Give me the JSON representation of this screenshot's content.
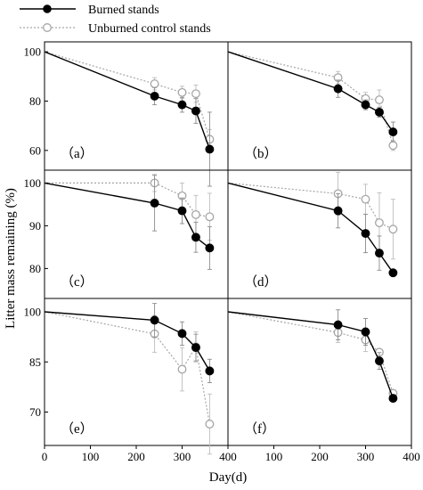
{
  "chart_data": {
    "type": "line",
    "xlabel": "Day(d)",
    "ylabel": "Litter mass remaining (%)",
    "legend": {
      "placement": "top-left",
      "entries": [
        {
          "label": "Burned stands",
          "color": "#000000",
          "marker": "filled-circle",
          "line": "solid"
        },
        {
          "label": "Unburned control stands",
          "color": "#a6a6a6",
          "marker": "open-circle",
          "line": "dotted"
        }
      ]
    },
    "xlim": [
      0,
      400
    ],
    "x_ticks": [
      0,
      100,
      200,
      300,
      400
    ],
    "x_tick_labels_left": [
      "0",
      "100",
      "200",
      "300",
      "400"
    ],
    "x_tick_labels_right": [
      "100",
      "200",
      "300",
      "400"
    ],
    "panels": [
      {
        "tag": "（a）",
        "ylim": [
          52,
          104
        ],
        "y_ticks": [
          60,
          80,
          100
        ],
        "series": [
          {
            "key": "burned",
            "x": [
              0,
              240,
              300,
              330,
              360
            ],
            "y": [
              100,
              82,
              78.5,
              76,
              60.5
            ],
            "err": [
              0,
              3.5,
              3,
              5,
              15
            ]
          },
          {
            "key": "unburned",
            "x": [
              0,
              240,
              300,
              330,
              360
            ],
            "y": [
              100,
              87,
              83.5,
              83,
              64.5
            ],
            "err": [
              0,
              2.5,
              2.5,
              3.5,
              4
            ]
          }
        ]
      },
      {
        "tag": "（b）",
        "ylim": [
          52,
          104
        ],
        "y_ticks": [],
        "series": [
          {
            "key": "burned",
            "x": [
              0,
              240,
              300,
              330,
              360
            ],
            "y": [
              100,
              85,
              78.5,
              75.5,
              67.5
            ],
            "err": [
              0,
              3.5,
              2,
              2,
              4
            ]
          },
          {
            "key": "unburned",
            "x": [
              0,
              240,
              300,
              330,
              360
            ],
            "y": [
              100,
              89.5,
              81,
              80.5,
              62
            ],
            "err": [
              0,
              2.5,
              2.5,
              4,
              2
            ]
          }
        ]
      },
      {
        "tag": "（c）",
        "ylim": [
          73,
          103
        ],
        "y_ticks": [
          80,
          90,
          100
        ],
        "series": [
          {
            "key": "burned",
            "x": [
              0,
              240,
              300,
              330,
              360
            ],
            "y": [
              100,
              95.3,
              93.5,
              87.3,
              84.8
            ],
            "err": [
              0,
              6.5,
              3,
              3.5,
              5
            ]
          },
          {
            "key": "unburned",
            "x": [
              0,
              240,
              300,
              330,
              360
            ],
            "y": [
              100,
              100,
              97,
              92.6,
              92.1
            ],
            "err": [
              0,
              2,
              3,
              4.5,
              5.5
            ]
          }
        ]
      },
      {
        "tag": "（d）",
        "ylim": [
          73,
          103
        ],
        "y_ticks": [],
        "series": [
          {
            "key": "burned",
            "x": [
              0,
              240,
              300,
              330,
              360
            ],
            "y": [
              100,
              93.5,
              88.2,
              83.6,
              79
            ],
            "err": [
              0,
              4,
              4.5,
              4,
              0.5
            ]
          },
          {
            "key": "unburned",
            "x": [
              0,
              240,
              300,
              330,
              360
            ],
            "y": [
              100,
              97.5,
              96.2,
              90.7,
              89.2
            ],
            "err": [
              0,
              5,
              3.5,
              7,
              7
            ]
          }
        ]
      },
      {
        "tag": "（e）",
        "ylim": [
          60,
          104
        ],
        "y_ticks": [
          70,
          85,
          100
        ],
        "series": [
          {
            "key": "burned",
            "x": [
              0,
              240,
              300,
              330,
              360
            ],
            "y": [
              100,
              97.5,
              93.5,
              89.3,
              82.3
            ],
            "err": [
              0,
              5,
              3.5,
              4,
              3.5
            ]
          },
          {
            "key": "unburned",
            "x": [
              0,
              240,
              300,
              330,
              360
            ],
            "y": [
              100,
              93.4,
              82.8,
              89.5,
              66.4
            ],
            "err": [
              0,
              5.5,
              6.5,
              4.5,
              9
            ]
          }
        ]
      },
      {
        "tag": "（f）",
        "ylim": [
          60,
          104
        ],
        "y_ticks": [],
        "series": [
          {
            "key": "burned",
            "x": [
              0,
              240,
              300,
              330,
              360
            ],
            "y": [
              100,
              96.1,
              94,
              85.3,
              74.1
            ],
            "err": [
              0,
              4.5,
              4,
              2.5,
              1
            ]
          },
          {
            "key": "unburned",
            "x": [
              0,
              240,
              300,
              330,
              360
            ],
            "y": [
              100,
              93.8,
              91.6,
              87.9,
              75.6
            ],
            "err": [
              0,
              3,
              3.5,
              1,
              1
            ]
          }
        ]
      }
    ]
  }
}
